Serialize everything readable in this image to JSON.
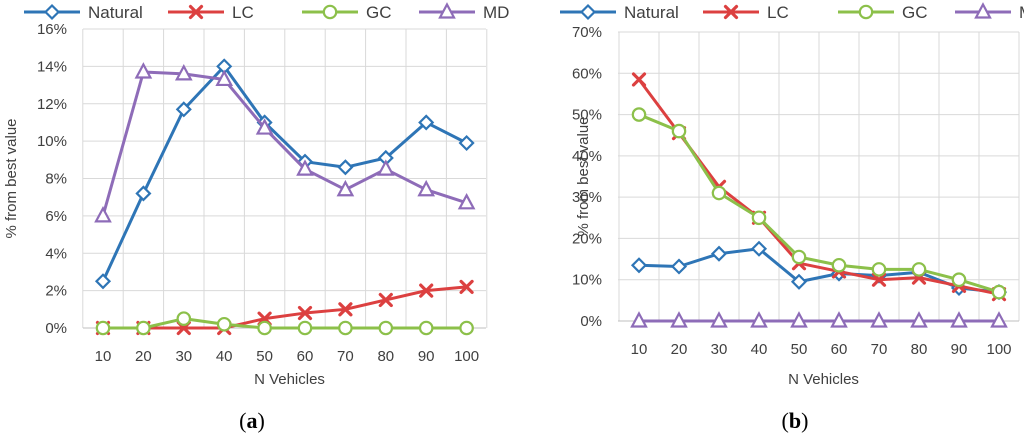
{
  "chart_data": [
    {
      "type": "line",
      "caption_open": "(",
      "caption_letter": "a",
      "caption_close": ")",
      "title": "",
      "xlabel": "N Vehicles",
      "ylabel": "% from best value",
      "categories": [
        "10",
        "20",
        "30",
        "40",
        "50",
        "60",
        "70",
        "80",
        "90",
        "100"
      ],
      "ylim": [
        0,
        16
      ],
      "yticks": [
        "0%",
        "2%",
        "4%",
        "6%",
        "8%",
        "10%",
        "12%",
        "14%",
        "16%"
      ],
      "grid": true,
      "legend_position": "top",
      "series": [
        {
          "name": "Natural",
          "color": "#2E75B6",
          "marker": "diamond",
          "values": [
            2.5,
            7.2,
            11.7,
            14.0,
            11.0,
            8.9,
            8.6,
            9.1,
            11.0,
            9.9
          ]
        },
        {
          "name": "LC",
          "color": "#DC4040",
          "marker": "x",
          "values": [
            0,
            0,
            0,
            0,
            0.5,
            0.8,
            1.0,
            1.5,
            2.0,
            2.2
          ]
        },
        {
          "name": "GC",
          "color": "#8CC04A",
          "marker": "circle",
          "values": [
            0,
            0,
            0.5,
            0.2,
            0,
            0,
            0,
            0,
            0,
            0
          ]
        },
        {
          "name": "MD",
          "color": "#8E6CB8",
          "marker": "triangle",
          "values": [
            6.0,
            13.7,
            13.6,
            13.3,
            10.7,
            8.5,
            7.4,
            8.5,
            7.4,
            6.7
          ]
        }
      ]
    },
    {
      "type": "line",
      "caption_open": "(",
      "caption_letter": "b",
      "caption_close": ")",
      "title": "",
      "xlabel": "N Vehicles",
      "ylabel": "% from best value",
      "categories": [
        "10",
        "20",
        "30",
        "40",
        "50",
        "60",
        "70",
        "80",
        "90",
        "100"
      ],
      "ylim": [
        0,
        70
      ],
      "yticks": [
        "0%",
        "10%",
        "20%",
        "30%",
        "40%",
        "50%",
        "60%",
        "70%"
      ],
      "grid": true,
      "legend_position": "top",
      "series": [
        {
          "name": "Natural",
          "color": "#2E75B6",
          "marker": "diamond",
          "values": [
            13.5,
            13.2,
            16.3,
            17.5,
            9.5,
            11.5,
            11.0,
            11.8,
            8.0,
            7.0
          ]
        },
        {
          "name": "LC",
          "color": "#DC4040",
          "marker": "x",
          "values": [
            58.5,
            45.5,
            32.5,
            25.0,
            14.0,
            12.0,
            10.0,
            10.5,
            8.5,
            6.5
          ]
        },
        {
          "name": "GC",
          "color": "#8CC04A",
          "marker": "circle",
          "values": [
            50.0,
            46.0,
            31.0,
            25.0,
            15.5,
            13.5,
            12.5,
            12.5,
            10.0,
            7.0
          ]
        },
        {
          "name": "MD",
          "color": "#8E6CB8",
          "marker": "triangle",
          "values": [
            0,
            0,
            0,
            0,
            0,
            0,
            0,
            0,
            0,
            0
          ]
        }
      ]
    }
  ]
}
